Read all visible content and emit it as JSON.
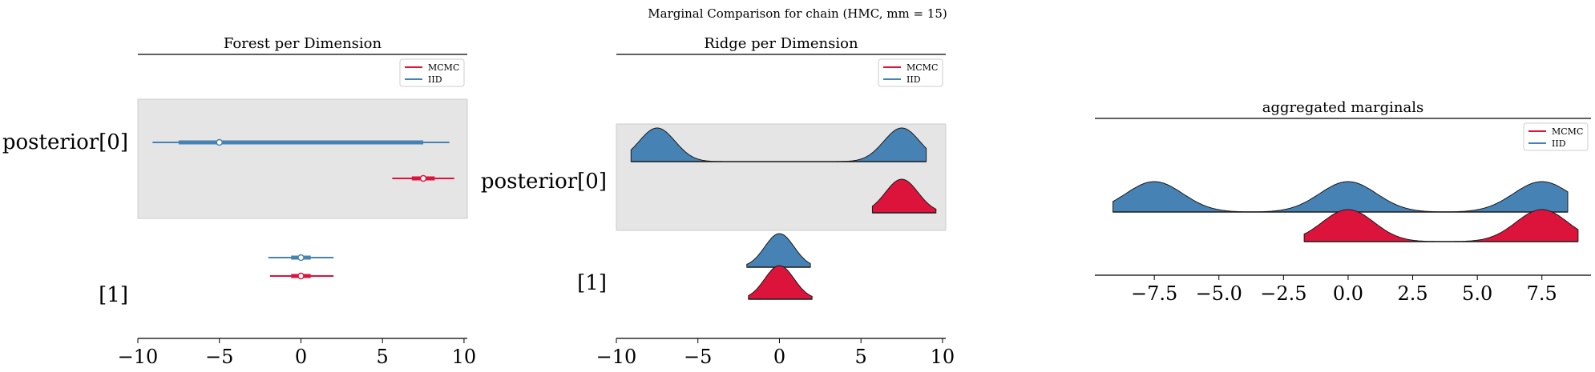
{
  "suptitle": "Marginal Comparison for chain (HMC, mm = 15)",
  "colors": {
    "mcmc": "#dc143c",
    "iid": "#4682b4",
    "band": "#e5e5e5"
  },
  "legend": {
    "mcmc": "MCMC",
    "iid": "IID"
  },
  "chart_data": [
    {
      "type": "forest",
      "title": "Forest per Dimension",
      "xlim": [
        -10,
        10.2
      ],
      "xticks": [
        "−10",
        "−5",
        "0",
        "5",
        "10"
      ],
      "xtick_values": [
        -10,
        -5,
        0,
        5,
        10
      ],
      "rows": [
        {
          "label": "posterior[0]",
          "shaded": true,
          "series": [
            {
              "name": "IID",
              "median": -5.0,
              "hdi50": [
                -7.5,
                7.5
              ],
              "hdi94": [
                -9.1,
                9.1
              ]
            },
            {
              "name": "MCMC",
              "median": 7.5,
              "hdi50": [
                6.8,
                8.2
              ],
              "hdi94": [
                5.6,
                9.4
              ]
            }
          ]
        },
        {
          "label": "[1]",
          "shaded": false,
          "series": [
            {
              "name": "IID",
              "median": 0.0,
              "hdi50": [
                -0.6,
                0.6
              ],
              "hdi94": [
                -2.0,
                2.0
              ]
            },
            {
              "name": "MCMC",
              "median": 0.0,
              "hdi50": [
                -0.6,
                0.6
              ],
              "hdi94": [
                -1.9,
                2.0
              ]
            }
          ]
        }
      ]
    },
    {
      "type": "ridgeplot",
      "title": "Ridge per Dimension",
      "xlim": [
        -10,
        10.2
      ],
      "xticks": [
        "−10",
        "−5",
        "0",
        "5",
        "10"
      ],
      "xtick_values": [
        -10,
        -5,
        0,
        5,
        10
      ],
      "rows": [
        {
          "label": "posterior[0]",
          "shaded": true,
          "series": [
            {
              "name": "IID",
              "range": [
                -9.1,
                9.0
              ],
              "peaks": [
                [
                  -7.5,
                  1.1,
                  1.0
                ],
                [
                  7.5,
                  1.1,
                  1.0
                ]
              ]
            },
            {
              "name": "MCMC",
              "range": [
                5.7,
                9.6
              ],
              "peaks": [
                [
                  7.5,
                  1.0,
                  1.0
                ]
              ]
            }
          ]
        },
        {
          "label": "[1]",
          "shaded": false,
          "series": [
            {
              "name": "IID",
              "range": [
                -2.0,
                1.9
              ],
              "peaks": [
                [
                  0.0,
                  0.9,
                  1.0
                ]
              ]
            },
            {
              "name": "MCMC",
              "range": [
                -1.9,
                2.0
              ],
              "peaks": [
                [
                  0.0,
                  0.9,
                  1.0
                ]
              ]
            }
          ]
        }
      ]
    },
    {
      "type": "area",
      "title": "aggregated marginals",
      "xlim": [
        -9.8,
        9.4
      ],
      "xticks": [
        "−7.5",
        "−5.0",
        "−2.5",
        "0.0",
        "2.5",
        "5.0",
        "7.5"
      ],
      "xtick_values": [
        -7.5,
        -5.0,
        -2.5,
        0.0,
        2.5,
        5.0,
        7.5
      ],
      "series": [
        {
          "name": "IID",
          "range": [
            -9.1,
            8.5
          ],
          "peaks": [
            [
              -7.5,
              1.1,
              1.0
            ],
            [
              0.0,
              1.1,
              1.0
            ],
            [
              7.5,
              1.1,
              1.0
            ]
          ]
        },
        {
          "name": "MCMC",
          "range": [
            -1.7,
            8.9
          ],
          "peaks": [
            [
              0.0,
              1.0,
              1.0
            ],
            [
              7.5,
              1.0,
              1.0
            ]
          ]
        }
      ]
    }
  ]
}
